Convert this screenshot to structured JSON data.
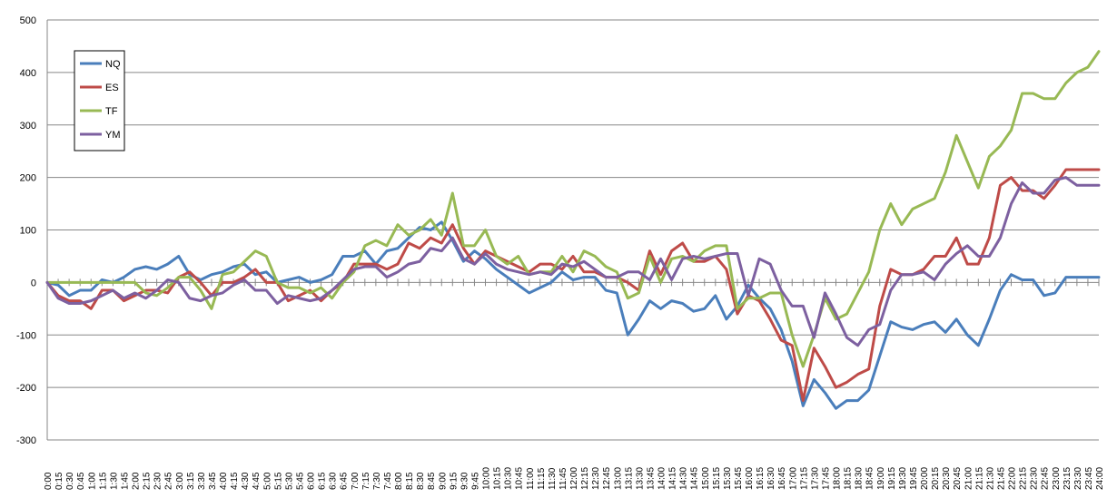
{
  "chart_data": {
    "type": "line",
    "title": "",
    "xlabel": "",
    "ylabel": "",
    "ylim": [
      -300,
      500
    ],
    "yticks": [
      -300,
      -200,
      -100,
      0,
      100,
      200,
      300,
      400,
      500
    ],
    "grid": "horizontal",
    "legend_position": "top-left",
    "x": [
      "0:00",
      "0:15",
      "0:30",
      "0:45",
      "1:00",
      "1:15",
      "1:30",
      "1:45",
      "2:00",
      "2:15",
      "2:30",
      "2:45",
      "3:00",
      "3:15",
      "3:30",
      "3:45",
      "4:00",
      "4:15",
      "4:30",
      "4:45",
      "5:00",
      "5:15",
      "5:30",
      "5:45",
      "6:00",
      "6:15",
      "6:30",
      "6:45",
      "7:00",
      "7:15",
      "7:30",
      "7:45",
      "8:00",
      "8:15",
      "8:30",
      "8:45",
      "9:00",
      "9:15",
      "9:30",
      "9:45",
      "10:00",
      "10:15",
      "10:30",
      "10:45",
      "11:00",
      "11:15",
      "11:30",
      "11:45",
      "12:00",
      "12:15",
      "12:30",
      "12:45",
      "13:00",
      "13:15",
      "13:30",
      "13:45",
      "14:00",
      "14:15",
      "14:30",
      "14:45",
      "15:00",
      "15:15",
      "15:30",
      "15:45",
      "16:00",
      "16:15",
      "16:30",
      "16:45",
      "17:00",
      "17:15",
      "17:30",
      "17:45",
      "18:00",
      "18:15",
      "18:30",
      "18:45",
      "19:00",
      "19:15",
      "19:30",
      "19:45",
      "20:00",
      "20:15",
      "20:30",
      "20:45",
      "21:00",
      "21:15",
      "21:30",
      "21:45",
      "22:00",
      "22:15",
      "22:30",
      "22:45",
      "23:00",
      "23:15",
      "23:30",
      "23:45",
      "24:00"
    ],
    "series": [
      {
        "name": "NQ",
        "color": "#4a7ebb",
        "values": [
          0,
          -5,
          -25,
          -15,
          -15,
          5,
          0,
          10,
          25,
          30,
          25,
          35,
          50,
          15,
          5,
          15,
          20,
          30,
          35,
          15,
          20,
          0,
          5,
          10,
          0,
          5,
          15,
          50,
          50,
          60,
          35,
          60,
          65,
          85,
          105,
          100,
          115,
          80,
          40,
          60,
          45,
          25,
          10,
          -5,
          -20,
          -10,
          0,
          20,
          5,
          10,
          10,
          -15,
          -20,
          -100,
          -70,
          -35,
          -50,
          -35,
          -40,
          -55,
          -50,
          -25,
          -70,
          -45,
          -5,
          -30,
          -50,
          -90,
          -150,
          -235,
          -185,
          -210,
          -240,
          -225,
          -225,
          -205,
          -140,
          -75,
          -85,
          -90,
          -80,
          -75,
          -95,
          -70,
          -100,
          -120,
          -70,
          -15,
          15,
          5,
          5,
          -25,
          -20,
          10,
          10,
          10,
          10
        ]
      },
      {
        "name": "ES",
        "color": "#be4b48",
        "values": [
          0,
          -25,
          -35,
          -35,
          -50,
          -15,
          -15,
          -35,
          -25,
          -15,
          -15,
          -20,
          10,
          20,
          0,
          -25,
          0,
          0,
          10,
          25,
          0,
          0,
          -35,
          -25,
          -15,
          -35,
          -15,
          0,
          35,
          35,
          35,
          25,
          35,
          75,
          65,
          85,
          75,
          110,
          65,
          35,
          60,
          50,
          40,
          30,
          20,
          35,
          35,
          25,
          50,
          20,
          20,
          10,
          10,
          0,
          -15,
          60,
          15,
          60,
          75,
          40,
          40,
          50,
          25,
          -60,
          -25,
          -35,
          -70,
          -110,
          -120,
          -225,
          -125,
          -160,
          -200,
          -190,
          -175,
          -165,
          -45,
          25,
          15,
          15,
          25,
          50,
          50,
          85,
          35,
          35,
          85,
          185,
          200,
          175,
          175,
          160,
          185,
          215,
          215,
          215,
          215
        ]
      },
      {
        "name": "TF",
        "color": "#98b954",
        "values": [
          0,
          0,
          0,
          0,
          0,
          0,
          0,
          0,
          0,
          -20,
          -25,
          -10,
          10,
          10,
          -15,
          -50,
          15,
          20,
          40,
          60,
          50,
          0,
          -10,
          -10,
          -20,
          -10,
          -30,
          0,
          20,
          70,
          80,
          70,
          110,
          90,
          100,
          120,
          90,
          170,
          70,
          70,
          100,
          50,
          35,
          50,
          15,
          20,
          20,
          50,
          20,
          60,
          50,
          30,
          20,
          -30,
          -20,
          50,
          0,
          45,
          50,
          40,
          60,
          70,
          70,
          -50,
          -30,
          -30,
          -20,
          -20,
          -100,
          -160,
          -100,
          -30,
          -70,
          -60,
          -20,
          20,
          100,
          150,
          110,
          140,
          150,
          160,
          210,
          280,
          230,
          180,
          240,
          260,
          290,
          360,
          360,
          350,
          350,
          380,
          400,
          410,
          440
        ]
      },
      {
        "name": "YM",
        "color": "#7d60a0",
        "values": [
          0,
          -30,
          -40,
          -40,
          -35,
          -25,
          -15,
          -30,
          -20,
          -30,
          -15,
          5,
          0,
          -30,
          -35,
          -25,
          -20,
          -5,
          5,
          -15,
          -15,
          -40,
          -25,
          -30,
          -35,
          -30,
          -15,
          5,
          25,
          30,
          30,
          10,
          20,
          35,
          40,
          65,
          60,
          85,
          45,
          35,
          55,
          35,
          25,
          20,
          15,
          20,
          15,
          35,
          30,
          40,
          25,
          10,
          10,
          20,
          20,
          5,
          45,
          5,
          45,
          50,
          45,
          50,
          55,
          55,
          -25,
          45,
          35,
          -15,
          -45,
          -45,
          -105,
          -20,
          -60,
          -105,
          -120,
          -90,
          -80,
          -15,
          15,
          15,
          20,
          5,
          35,
          55,
          70,
          50,
          50,
          85,
          150,
          190,
          170,
          170,
          195,
          200,
          185,
          185,
          185
        ]
      }
    ]
  }
}
